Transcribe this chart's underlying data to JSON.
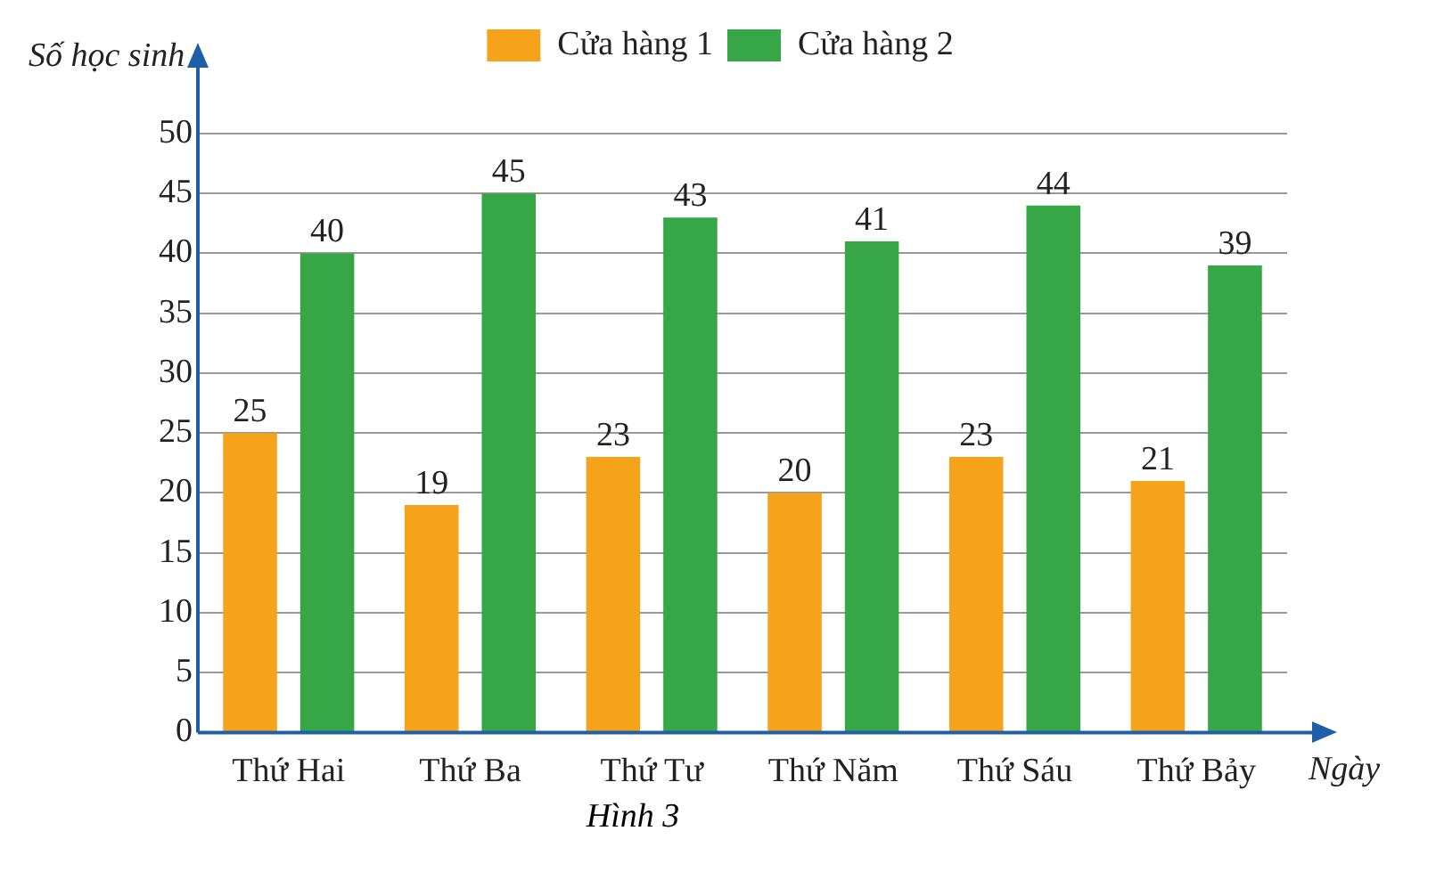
{
  "chart_data": {
    "type": "bar",
    "ylabel": "Số học sinh",
    "xlabel": "Ngày",
    "annotations": [
      "Hình 3"
    ],
    "categories": [
      "Thứ Hai",
      "Thứ Ba",
      "Thứ Tư",
      "Thứ Năm",
      "Thứ Sáu",
      "Thứ Bảy"
    ],
    "series": [
      {
        "name": "Cửa hàng 1",
        "color": "#f5a31a",
        "values": [
          25,
          19,
          23,
          20,
          23,
          21
        ]
      },
      {
        "name": "Cửa hàng 2",
        "color": "#36a646",
        "values": [
          40,
          45,
          43,
          41,
          44,
          39
        ]
      }
    ],
    "ylim": [
      0,
      50
    ],
    "yticks": [
      0,
      5,
      10,
      15,
      20,
      25,
      30,
      35,
      40,
      45,
      50
    ],
    "grid": "y",
    "legend": "top",
    "data_labels": true
  }
}
